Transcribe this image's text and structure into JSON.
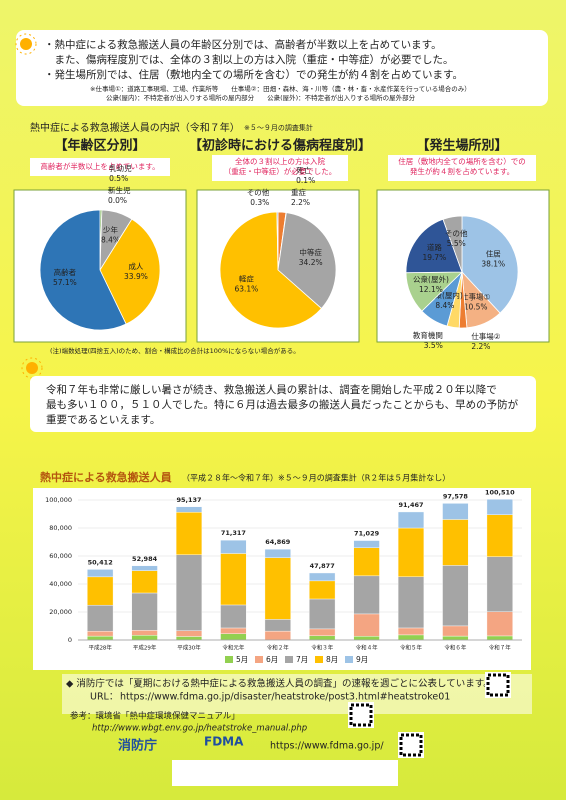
{
  "header": {
    "bullets": [
      "・熱中症による救急搬送人員の年齢区分別では、高齢者が半数以上を占めています。",
      "　また、傷病程度別では、全体の３割以上の方は入院（重症・中等症）が必要でした。",
      "・発生場所別では、住居（敷地内全ての場所を含む）での発生が約４割を占めています。"
    ],
    "notes": [
      "※仕事場①：道路工事現場、工場、作業所等　　仕事場②：田畑・森林、海・川等（農・林・畜・水産作業を行っている場合のみ）",
      "公衆(屋内)：不特定者が出入りする場所の屋内部分　　公衆(屋外)：不特定者が出入りする場所の屋外部分"
    ]
  },
  "breakdown_title": "熱中症による救急搬送人員の内訳（令和７年）",
  "breakdown_note": "※５～９月の調査集計",
  "chart_data": [
    {
      "type": "pie",
      "title": "【年齢区分別】",
      "subtitle": [
        "高齢者が半数以上を占めています。"
      ],
      "categories": [
        "新生児",
        "乳幼児",
        "少年",
        "成人",
        "高齢者"
      ],
      "values": [
        0.0,
        0.5,
        8.4,
        33.9,
        57.1
      ],
      "value_labels": [
        "0.0%",
        "0.5%",
        "8.4%",
        "33.9%",
        "57.1%"
      ],
      "colors": [
        "#5b9bd5",
        "#70ad47",
        "#a5a5a5",
        "#ffc000",
        "#2e75b6"
      ]
    },
    {
      "type": "pie",
      "title": "【初診時における傷病程度別】",
      "subtitle": [
        "全体の３割以上の方は入院",
        "（重症・中等症）が必要でした。"
      ],
      "categories": [
        "重症",
        "死亡",
        "中等症",
        "軽症",
        "その他"
      ],
      "values": [
        2.2,
        0.1,
        34.2,
        63.1,
        0.3
      ],
      "value_labels": [
        "2.2%",
        "0.1%",
        "34.2%",
        "63.1%",
        "0.3%"
      ],
      "colors": [
        "#ed7d31",
        "#5b9bd5",
        "#a5a5a5",
        "#ffc000",
        "#4472c4"
      ]
    },
    {
      "type": "pie",
      "title": "【発生場所別】",
      "subtitle": [
        "住居（敷地内全ての場所を含む）での",
        "発生が約４割を占めています。"
      ],
      "categories": [
        "住居",
        "仕事場①",
        "仕事場②",
        "教育機関",
        "公衆(屋内)",
        "公衆(屋外)",
        "道路",
        "その他"
      ],
      "values": [
        38.1,
        10.5,
        2.2,
        3.5,
        8.4,
        12.1,
        19.7,
        5.5
      ],
      "value_labels": [
        "38.1%",
        "10.5%",
        "2.2%",
        "3.5%",
        "8.4%",
        "12.1%",
        "19.7%",
        "5.5%"
      ],
      "colors": [
        "#9dc3e6",
        "#f4b183",
        "#ed7d31",
        "#ffd966",
        "#5b9bd5",
        "#a9d18e",
        "#2f5597",
        "#a5a5a5"
      ]
    },
    {
      "type": "bar",
      "stacked": true,
      "title": "熱中症による救急搬送人員",
      "subtitle": "（平成２８年～令和７年）※５～９月の調査集計（R２年は５月集計なし）",
      "categories": [
        "平成28年",
        "平成29年",
        "平成30年",
        "令和元年",
        "令和２年",
        "令和３年",
        "令和４年",
        "令和５年",
        "令和６年",
        "令和７年"
      ],
      "series": [
        {
          "name": "5月",
          "color": "#92d050",
          "values": [
            2788,
            3401,
            2504,
            4448,
            null,
            2995,
            2668,
            3647,
            2799,
            2913
          ]
        },
        {
          "name": "6月",
          "color": "#f4a582",
          "values": [
            3421,
            3481,
            4151,
            4151,
            6336,
            4937,
            15969,
            4964,
            7275,
            17229
          ]
        },
        {
          "name": "7月",
          "color": "#a5a5a5",
          "values": [
            18671,
            26702,
            54220,
            16431,
            8388,
            21372,
            27190,
            36549,
            43195,
            39375
          ]
        },
        {
          "name": "8月",
          "color": "#ffc000",
          "values": [
            20224,
            15979,
            30410,
            36755,
            44099,
            12935,
            20029,
            34835,
            32806,
            30000
          ]
        },
        {
          "name": "9月",
          "color": "#9dc3e6",
          "values": [
            5308,
            3421,
            3852,
            9532,
            6046,
            5638,
            5173,
            11472,
            11503,
            10993
          ]
        }
      ],
      "totals": [
        50412,
        52984,
        95137,
        71317,
        64869,
        47877,
        71029,
        91467,
        97578,
        100510
      ],
      "total_labels": [
        "50,412",
        "52,984",
        "95,137",
        "71,317",
        "64,869",
        "47,877",
        "71,029",
        "91,467",
        "97,578",
        "100,510"
      ],
      "ylim": [
        0,
        100000
      ],
      "yticks": [
        {
          "value": 0,
          "label": "0"
        },
        {
          "value": 20000,
          "label": "20,000"
        },
        {
          "value": 40000,
          "label": "40,000"
        },
        {
          "value": 60000,
          "label": "60,000"
        },
        {
          "value": 80000,
          "label": "80,000"
        },
        {
          "value": 100000,
          "label": "100,000"
        }
      ],
      "grid": true
    }
  ],
  "footnote": "(注)端数処理(四捨五入)のため、割合・構成比の合計は100%にならない場合がある。",
  "summary": [
    "令和７年も非常に厳しい暑さが続き、救急搬送人員の累計は、調査を開始した平成２０年以降で",
    "最も多い１００，５１０人でした。特に６月は過去最多の搬送人員だったことからも、早めの予防が",
    "重要であるといえます。"
  ],
  "footer": {
    "notice": "◆ 消防庁では「夏期における熱中症による救急搬送人員の調査」の速報を週ごとに公表しています。",
    "url_label": "URL：",
    "url": "https://www.fdma.go.jp/disaster/heatstroke/post3.html#heatstroke01",
    "reference": "参考：環境省「熱中症環境保健マニュアル」",
    "reference_url": "http://www.wbgt.env.go.jp/heatstroke_manual.php",
    "agency": "消防庁",
    "logo": "FDMA",
    "website": "https://www.fdma.go.jp/"
  }
}
